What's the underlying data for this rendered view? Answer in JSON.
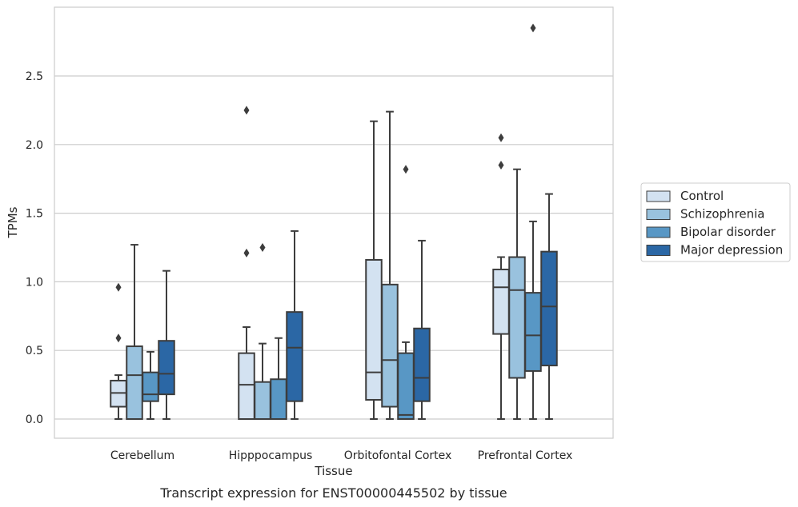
{
  "chart_data": {
    "type": "box",
    "xlabel": "Tissue",
    "ylabel": "TPMs",
    "caption": "Transcript expression for ENST00000445502 by tissue",
    "ylim": [
      -0.14,
      3.0
    ],
    "yticks": [
      "0.0",
      "0.5",
      "1.0",
      "1.5",
      "2.0",
      "2.5"
    ],
    "grid": "horizontal",
    "legend_position": "right-center",
    "categories": [
      "Cerebellum",
      "Hipppocampus",
      "Orbitofontal Cortex",
      "Prefrontal Cortex"
    ],
    "series": [
      {
        "name": "Control",
        "color": "#d3e2f1",
        "boxes": [
          {
            "whislo": 0.0,
            "q1": 0.09,
            "med": 0.19,
            "q3": 0.28,
            "whishi": 0.32,
            "fliers": [
              0.59,
              0.96
            ]
          },
          {
            "whislo": 0.0,
            "q1": 0.0,
            "med": 0.25,
            "q3": 0.48,
            "whishi": 0.67,
            "fliers": [
              1.21,
              2.25
            ]
          },
          {
            "whislo": 0.0,
            "q1": 0.14,
            "med": 0.34,
            "q3": 1.16,
            "whishi": 2.17,
            "fliers": []
          },
          {
            "whislo": 0.0,
            "q1": 0.62,
            "med": 0.96,
            "q3": 1.09,
            "whishi": 1.18,
            "fliers": [
              1.85,
              2.05
            ]
          }
        ]
      },
      {
        "name": "Schizophrenia",
        "color": "#99c2de",
        "boxes": [
          {
            "whislo": 0.0,
            "q1": 0.0,
            "med": 0.32,
            "q3": 0.53,
            "whishi": 1.27,
            "fliers": []
          },
          {
            "whislo": 0.0,
            "q1": 0.0,
            "med": 0.0,
            "q3": 0.27,
            "whishi": 0.55,
            "fliers": [
              1.25
            ]
          },
          {
            "whislo": 0.0,
            "q1": 0.09,
            "med": 0.43,
            "q3": 0.98,
            "whishi": 2.24,
            "fliers": []
          },
          {
            "whislo": 0.0,
            "q1": 0.3,
            "med": 0.94,
            "q3": 1.18,
            "whishi": 1.82,
            "fliers": []
          }
        ]
      },
      {
        "name": "Bipolar disorder",
        "color": "#5897c5",
        "boxes": [
          {
            "whislo": 0.0,
            "q1": 0.13,
            "med": 0.18,
            "q3": 0.34,
            "whishi": 0.49,
            "fliers": []
          },
          {
            "whislo": 0.0,
            "q1": 0.0,
            "med": 0.0,
            "q3": 0.29,
            "whishi": 0.59,
            "fliers": []
          },
          {
            "whislo": 0.0,
            "q1": 0.0,
            "med": 0.03,
            "q3": 0.48,
            "whishi": 0.56,
            "fliers": [
              1.82
            ]
          },
          {
            "whislo": 0.0,
            "q1": 0.35,
            "med": 0.61,
            "q3": 0.92,
            "whishi": 1.44,
            "fliers": [
              2.85
            ]
          }
        ]
      },
      {
        "name": "Major depression",
        "color": "#2b67a5",
        "boxes": [
          {
            "whislo": 0.0,
            "q1": 0.18,
            "med": 0.33,
            "q3": 0.57,
            "whishi": 1.08,
            "fliers": []
          },
          {
            "whislo": 0.0,
            "q1": 0.13,
            "med": 0.52,
            "q3": 0.78,
            "whishi": 1.37,
            "fliers": []
          },
          {
            "whislo": 0.0,
            "q1": 0.13,
            "med": 0.3,
            "q3": 0.66,
            "whishi": 1.3,
            "fliers": []
          },
          {
            "whislo": 0.0,
            "q1": 0.39,
            "med": 0.82,
            "q3": 1.22,
            "whishi": 1.64,
            "fliers": []
          }
        ]
      }
    ]
  },
  "colors": {
    "box_edge": "#3d3d3d",
    "grid": "#cccccc",
    "frame": "#cccccc",
    "text": "#262626"
  }
}
